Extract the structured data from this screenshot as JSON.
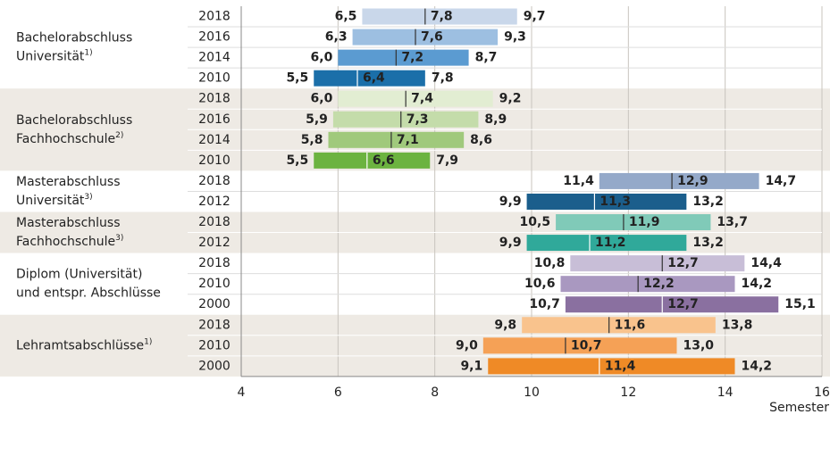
{
  "chart_data": {
    "type": "range_bar",
    "xlim": [
      4,
      16
    ],
    "xticks": [
      4,
      6,
      8,
      10,
      12,
      14,
      16
    ],
    "x_label": "Semester",
    "grid": true,
    "groups": [
      {
        "label_lines": [
          "Bachelorabschluss",
          "Universität"
        ],
        "footnote": "1)",
        "rows": [
          {
            "year": "2018",
            "values": [
              6.5,
              7.8,
              9.7
            ],
            "value_labels": [
              "6,5",
              "7,8",
              "9,7"
            ],
            "color": "#c9d7ea"
          },
          {
            "year": "2016",
            "values": [
              6.3,
              7.6,
              9.3
            ],
            "value_labels": [
              "6,3",
              "7,6",
              "9,3"
            ],
            "color": "#9dbfe1"
          },
          {
            "year": "2014",
            "values": [
              6.0,
              7.2,
              8.7
            ],
            "value_labels": [
              "6,0",
              "7,2",
              "8,7"
            ],
            "color": "#5b9bd1"
          },
          {
            "year": "2010",
            "values": [
              5.5,
              6.4,
              7.8
            ],
            "value_labels": [
              "5,5",
              "6,4",
              "7,8"
            ],
            "color": "#1b6fa9"
          }
        ]
      },
      {
        "label_lines": [
          "Bachelorabschluss",
          "Fachhochschule"
        ],
        "footnote": "2)",
        "rows": [
          {
            "year": "2018",
            "values": [
              6.0,
              7.4,
              9.2
            ],
            "value_labels": [
              "6,0",
              "7,4",
              "9,2"
            ],
            "color": "#e2edd2"
          },
          {
            "year": "2016",
            "values": [
              5.9,
              7.3,
              8.9
            ],
            "value_labels": [
              "5,9",
              "7,3",
              "8,9"
            ],
            "color": "#c4dcaa"
          },
          {
            "year": "2014",
            "values": [
              5.8,
              7.1,
              8.6
            ],
            "value_labels": [
              "5,8",
              "7,1",
              "8,6"
            ],
            "color": "#a0c97c"
          },
          {
            "year": "2010",
            "values": [
              5.5,
              6.6,
              7.9
            ],
            "value_labels": [
              "5,5",
              "6,6",
              "7,9"
            ],
            "color": "#6cb340"
          }
        ]
      },
      {
        "label_lines": [
          "Masterabschluss",
          "Universität"
        ],
        "footnote": "3)",
        "rows": [
          {
            "year": "2018",
            "values": [
              11.4,
              12.9,
              14.7
            ],
            "value_labels": [
              "11,4",
              "12,9",
              "14,7"
            ],
            "color": "#94a9c9"
          },
          {
            "year": "2012",
            "values": [
              9.9,
              11.3,
              13.2
            ],
            "value_labels": [
              "9,9",
              "11,3",
              "13,2"
            ],
            "color": "#1b5e8c"
          }
        ]
      },
      {
        "label_lines": [
          "Masterabschluss",
          "Fachhochschule"
        ],
        "footnote": "3)",
        "rows": [
          {
            "year": "2018",
            "values": [
              10.5,
              11.9,
              13.7
            ],
            "value_labels": [
              "10,5",
              "11,9",
              "13,7"
            ],
            "color": "#80cab8"
          },
          {
            "year": "2012",
            "values": [
              9.9,
              11.2,
              13.2
            ],
            "value_labels": [
              "9,9",
              "11,2",
              "13,2"
            ],
            "color": "#30a99a"
          }
        ]
      },
      {
        "label_lines": [
          "Diplom (Universität)",
          "und entspr. Abschlüsse"
        ],
        "rows": [
          {
            "year": "2018",
            "values": [
              10.8,
              12.7,
              14.4
            ],
            "value_labels": [
              "10,8",
              "12,7",
              "14,4"
            ],
            "color": "#c8bed7"
          },
          {
            "year": "2010",
            "values": [
              10.6,
              12.2,
              14.2
            ],
            "value_labels": [
              "10,6",
              "12,2",
              "14,2"
            ],
            "color": "#a998c0"
          },
          {
            "year": "2000",
            "values": [
              10.7,
              12.7,
              15.1
            ],
            "value_labels": [
              "10,7",
              "12,7",
              "15,1"
            ],
            "color": "#8a70a0"
          }
        ]
      },
      {
        "label_lines": [
          "Lehramtsabschlüsse"
        ],
        "footnote": "1)",
        "rows": [
          {
            "year": "2018",
            "values": [
              9.8,
              11.6,
              13.8
            ],
            "value_labels": [
              "9,8",
              "11,6",
              "13,8"
            ],
            "color": "#f9c38d"
          },
          {
            "year": "2010",
            "values": [
              9.0,
              10.7,
              13.0
            ],
            "value_labels": [
              "9,0",
              "10,7",
              "13,0"
            ],
            "color": "#f5a156"
          },
          {
            "year": "2000",
            "values": [
              9.1,
              11.4,
              14.2
            ],
            "value_labels": [
              "9,1",
              "11,4",
              "14,2"
            ],
            "color": "#ef8a26"
          }
        ]
      }
    ]
  }
}
